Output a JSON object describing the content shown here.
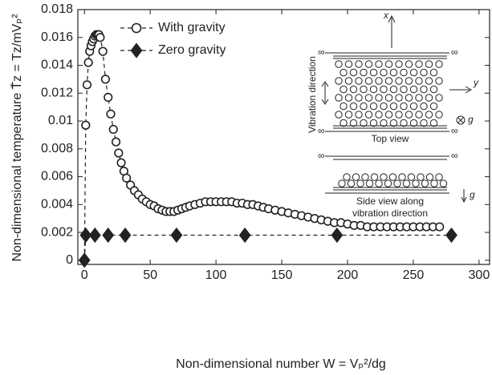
{
  "chart_data": {
    "type": "line",
    "xlabel": "Non-dimensional number W = Vₚ²/dg",
    "ylabel": "Non-dimensional temperature T̄z = Tz/mVₚ²",
    "xlim": [
      -5,
      308
    ],
    "ylim": [
      -0.0003,
      0.018
    ],
    "xticks": [
      0,
      50,
      100,
      150,
      200,
      250,
      300
    ],
    "yticks": [
      0,
      0.002,
      0.004,
      0.006,
      0.008,
      0.01,
      0.012,
      0.014,
      0.016,
      0.018
    ],
    "legend": "upper left",
    "series": [
      {
        "name": "With gravity",
        "color": "#222222",
        "marker": "circle",
        "filled": false,
        "x": [
          0,
          1,
          2,
          3,
          4,
          5,
          6,
          7,
          8,
          9,
          10,
          11,
          12,
          14,
          16,
          18,
          20,
          22,
          24,
          26,
          28,
          30,
          32,
          35,
          38,
          41,
          44,
          47,
          50,
          53,
          56,
          59,
          62,
          65,
          68,
          71,
          74,
          77,
          80,
          84,
          88,
          92,
          96,
          100,
          104,
          108,
          112,
          116,
          120,
          124,
          128,
          132,
          136,
          140,
          145,
          150,
          155,
          160,
          165,
          170,
          175,
          180,
          185,
          190,
          195,
          200,
          205,
          210,
          215,
          220,
          225,
          230,
          235,
          240,
          245,
          250,
          255,
          260,
          265,
          270
        ],
        "values": [
          0,
          0.0097,
          0.0126,
          0.0142,
          0.015,
          0.0154,
          0.0157,
          0.0159,
          0.0161,
          0.0162,
          0.0162,
          0.0162,
          0.016,
          0.015,
          0.013,
          0.0117,
          0.0105,
          0.0094,
          0.0085,
          0.0077,
          0.007,
          0.0064,
          0.0059,
          0.0054,
          0.005,
          0.0047,
          0.0044,
          0.0042,
          0.004,
          0.0039,
          0.0037,
          0.0036,
          0.0035,
          0.0035,
          0.0035,
          0.0036,
          0.0037,
          0.0038,
          0.0039,
          0.004,
          0.0041,
          0.0042,
          0.0042,
          0.0042,
          0.0042,
          0.0042,
          0.0042,
          0.0041,
          0.0041,
          0.004,
          0.004,
          0.0039,
          0.0038,
          0.0037,
          0.0036,
          0.0035,
          0.0034,
          0.0033,
          0.0032,
          0.0031,
          0.003,
          0.0029,
          0.0028,
          0.0027,
          0.0027,
          0.0026,
          0.0025,
          0.0025,
          0.0024,
          0.0024,
          0.0024,
          0.0024,
          0.0024,
          0.0024,
          0.0024,
          0.0024,
          0.0024,
          0.0024,
          0.0024,
          0.0024
        ]
      },
      {
        "name": "Zero gravity",
        "color": "#222222",
        "marker": "diamond",
        "filled": true,
        "x": [
          0,
          1,
          8,
          18,
          31,
          70,
          122,
          192,
          279
        ],
        "values": [
          0,
          0.0018,
          0.0018,
          0.0018,
          0.0018,
          0.0018,
          0.0018,
          0.0018,
          0.0018
        ]
      }
    ],
    "inset": {
      "x_axis": "x",
      "y_axis": "y",
      "infinity": "∞",
      "vibration": "Vibration direction",
      "gravity": "g",
      "top_view": "Top view",
      "side_view_1": "Side view along",
      "side_view_2": "vibration direction"
    }
  }
}
